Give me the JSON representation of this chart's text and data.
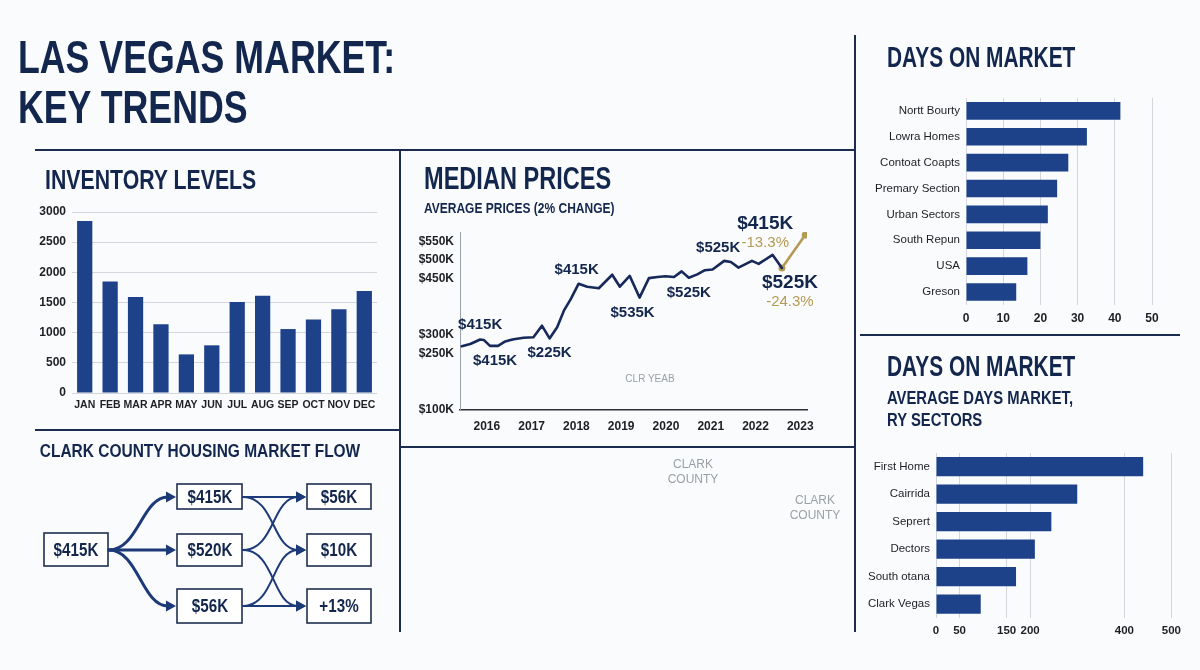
{
  "chart_data": [
    {
      "type": "other",
      "title": "LAS VEGAS MARKET:\nKEY TRENDS"
    },
    {
      "type": "bar",
      "title": "INVENTORY LEVELS",
      "categories": [
        "JAN",
        "FEB",
        "MAR",
        "APR",
        "MAY",
        "JUN",
        "JUL",
        "AUG",
        "SEP",
        "OCT",
        "NOV",
        "DEC"
      ],
      "values": [
        2850,
        1850,
        1590,
        1140,
        640,
        790,
        1510,
        1610,
        1060,
        1220,
        1390,
        1690
      ],
      "color": "#1d428a",
      "ylim": [
        0,
        3000
      ],
      "yticks": [
        0,
        500,
        1000,
        1500,
        2000,
        2500,
        3000
      ],
      "grid": "y"
    },
    {
      "type": "line",
      "title": "MEDIAN PRICES",
      "subtitle": "AVERAGE PRICES (2% CHANGE)",
      "xlim": [
        2015.4,
        2023.15
      ],
      "xticks": [
        2016,
        2017,
        2018,
        2019,
        2020,
        2021,
        2022,
        2023
      ],
      "ylim": [
        100,
        575
      ],
      "yticks": [
        {
          "value": 100,
          "label": "$100K"
        },
        {
          "value": 250,
          "label": "$250K"
        },
        {
          "value": 300,
          "label": "$300K"
        },
        {
          "value": 450,
          "label": "$450K"
        },
        {
          "value": 500,
          "label": "$500K"
        },
        {
          "value": 550,
          "label": "$550K"
        }
      ],
      "grid": false,
      "series": [
        {
          "color": "#16295a",
          "x": [
            2015.44,
            2015.63,
            2015.85,
            2015.93,
            2016.07,
            2016.25,
            2016.41,
            2016.6,
            2016.82,
            2017.04,
            2017.23,
            2017.4,
            2017.57,
            2017.72,
            2017.87,
            2018.05,
            2018.24,
            2018.5,
            2018.8,
            2018.97,
            2019.19,
            2019.41,
            2019.62,
            2019.81,
            2019.99,
            2020.18,
            2020.35,
            2020.51,
            2020.7,
            2020.87,
            2021.04,
            2021.3,
            2021.45,
            2021.62,
            2021.92,
            2022.07,
            2022.38,
            2022.59
          ],
          "values": [
            270,
            276,
            288,
            287,
            271,
            271,
            283,
            289,
            293,
            294,
            325,
            291,
            321,
            365,
            395,
            437,
            429,
            425,
            461,
            429,
            458,
            400,
            452,
            455,
            457,
            455,
            470,
            453,
            462,
            473,
            475,
            498,
            495,
            480,
            498,
            490,
            514,
            479
          ]
        },
        {
          "color": "#b59a55",
          "marker": "circle",
          "x": [
            2022.59,
            2023.11
          ],
          "values": [
            479,
            567
          ]
        }
      ],
      "annotations": [
        {
          "text": "$415K",
          "x": 2015.85,
          "y": 288
        },
        {
          "text": "$415K",
          "x": 2016.25,
          "y": 271
        },
        {
          "text": "$225K",
          "x": 2017.4,
          "y": 291
        },
        {
          "text": "$415K",
          "x": 2018.05,
          "y": 437
        },
        {
          "text": "$535K",
          "x": 2019.41,
          "y": 400
        },
        {
          "text": "$525K",
          "x": 2020.51,
          "y": 453
        },
        {
          "text": "$525K",
          "x": 2021.3,
          "y": 498
        },
        {
          "text": "$525K\n-24.3%",
          "x": 2022.59,
          "y": 479
        },
        {
          "text": "$415K\n-13.3%",
          "x": 2023.11,
          "y": 567
        }
      ]
    },
    {
      "type": "bar",
      "orientation": "horizontal",
      "title": "DAYS ON MARKET",
      "categories": [
        "Nortt Bourty",
        "Lowra Homes",
        "Contoat Coapts",
        "Premary Section",
        "Urban Sectors",
        "South Repun",
        "USA",
        "Greson"
      ],
      "values": [
        41.5,
        32.5,
        27.5,
        24.5,
        22,
        20,
        16.5,
        13.5
      ],
      "color": "#1d428a",
      "xlim": [
        0,
        50
      ],
      "xticks": [
        0,
        10,
        20,
        30,
        40,
        50
      ],
      "grid": "x"
    },
    {
      "type": "other",
      "title": "CLARK COUNTY HOUSING MARKET FLOW",
      "annotations": [
        "$415K",
        "$415K",
        "$520K",
        "$56K",
        "$56K",
        "$10K",
        "+13%"
      ]
    },
    {
      "type": "other",
      "annotations": [
        "CLARK\nCOUNTY",
        "CLARK\nCOUNTY",
        "CLR YEAB"
      ]
    },
    {
      "type": "bar",
      "orientation": "horizontal",
      "title": "DAYS ON MARKET",
      "subtitle": "AVERAGE DAYS MARKET,\nRY SECTORS",
      "categories": [
        "First Home",
        "Cairrida",
        "Seprert",
        "Dectors",
        "South otana",
        "Clark Vegas"
      ],
      "values": [
        440,
        300,
        245,
        210,
        170,
        95
      ],
      "color": "#1d428a",
      "xlim": [
        0,
        500
      ],
      "xticks": [
        0,
        50,
        150,
        200,
        400,
        500
      ],
      "grid": "x"
    }
  ]
}
